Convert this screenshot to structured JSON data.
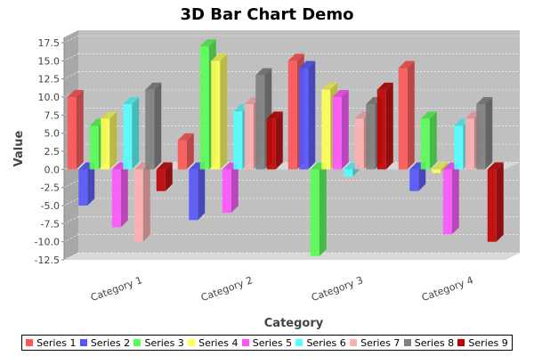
{
  "chart_data": {
    "type": "bar",
    "title": "3D Bar Chart Demo",
    "xlabel": "Category",
    "ylabel": "Value",
    "ylim": [
      -12.5,
      17.5
    ],
    "yticks": [
      "17.5",
      "15.0",
      "12.5",
      "10.0",
      "7.5",
      "5.0",
      "2.5",
      "0.0",
      "-2.5",
      "-5.0",
      "-7.5",
      "-10.0",
      "-12.5"
    ],
    "categories": [
      "Category 1",
      "Category 2",
      "Category 3",
      "Category 4"
    ],
    "legend_position": "bottom",
    "grid": true,
    "series": [
      {
        "name": "Series 1",
        "color": "#ff5555",
        "values": [
          10,
          4,
          15,
          14
        ]
      },
      {
        "name": "Series 2",
        "color": "#5555ff",
        "values": [
          -5,
          -7,
          14,
          -3
        ]
      },
      {
        "name": "Series 3",
        "color": "#55ff55",
        "values": [
          6,
          17,
          -12,
          7
        ]
      },
      {
        "name": "Series 4",
        "color": "#ffff55",
        "values": [
          7,
          15,
          11,
          -0.5
        ]
      },
      {
        "name": "Series 5",
        "color": "#ff55ff",
        "values": [
          -8,
          -6,
          10,
          -9
        ]
      },
      {
        "name": "Series 6",
        "color": "#55ffff",
        "values": [
          9,
          8,
          -1,
          6
        ]
      },
      {
        "name": "Series 7",
        "color": "#ffafaf",
        "values": [
          -10,
          9,
          7,
          7
        ]
      },
      {
        "name": "Series 8",
        "color": "#808080",
        "values": [
          11,
          13,
          9,
          9
        ]
      },
      {
        "name": "Series 9",
        "color": "#c00000",
        "values": [
          -3,
          7,
          11,
          -10
        ]
      }
    ]
  }
}
